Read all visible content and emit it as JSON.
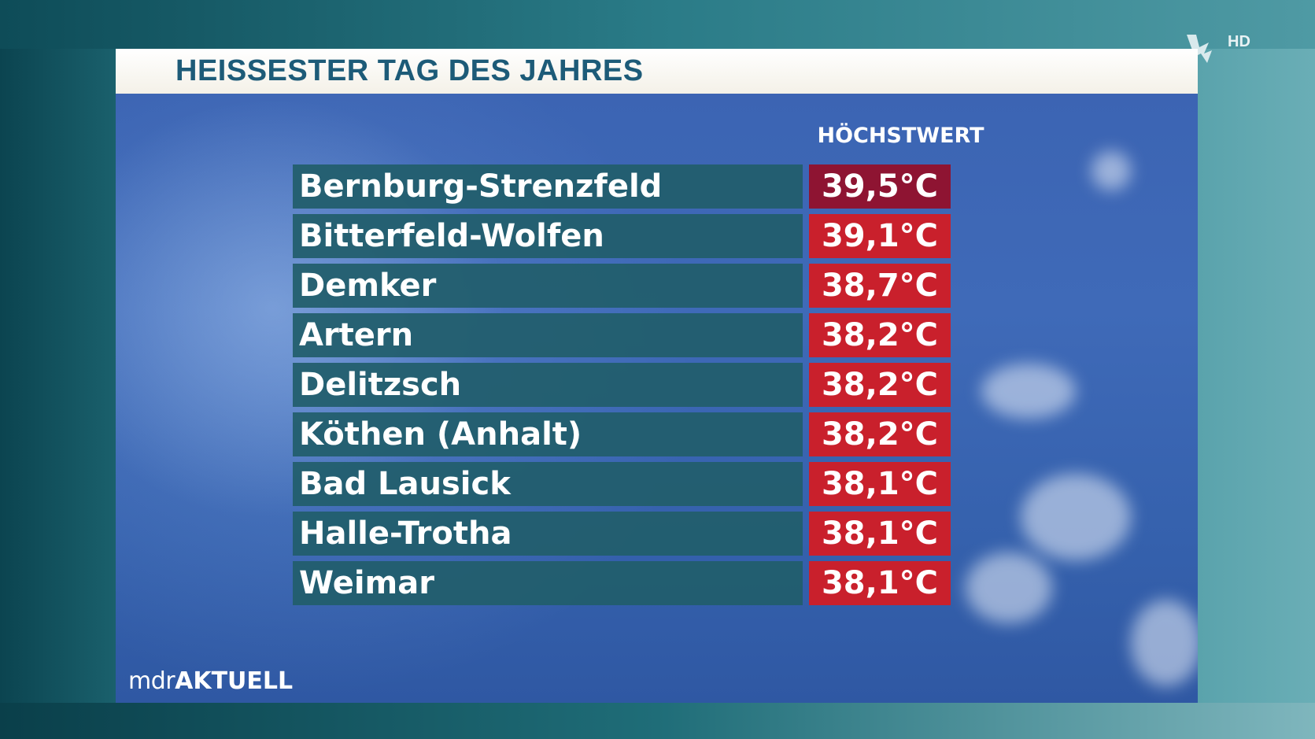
{
  "broadcast": {
    "channel_badge": "HD",
    "brand_prefix": "mdr",
    "brand_suffix": "AKTUELL"
  },
  "graphic": {
    "title": "HEISSESTER TAG DES JAHRES",
    "column_header": "HÖCHSTWERT"
  },
  "rows": [
    {
      "station": "Bernburg-Strenzfeld",
      "temperature": "39,5°C"
    },
    {
      "station": "Bitterfeld-Wolfen",
      "temperature": "39,1°C"
    },
    {
      "station": "Demker",
      "temperature": "38,7°C"
    },
    {
      "station": "Artern",
      "temperature": "38,2°C"
    },
    {
      "station": "Delitzsch",
      "temperature": "38,2°C"
    },
    {
      "station": "Köthen (Anhalt)",
      "temperature": "38,2°C"
    },
    {
      "station": "Bad Lausick",
      "temperature": "38,1°C"
    },
    {
      "station": "Halle-Trotha",
      "temperature": "38,1°C"
    },
    {
      "station": "Weimar",
      "temperature": "38,1°C"
    }
  ],
  "colors": {
    "row_background": "#215e6c",
    "temperature_highlight": "#8e1432",
    "temperature_background": "#c9202c",
    "title_text": "#1d5b78"
  }
}
